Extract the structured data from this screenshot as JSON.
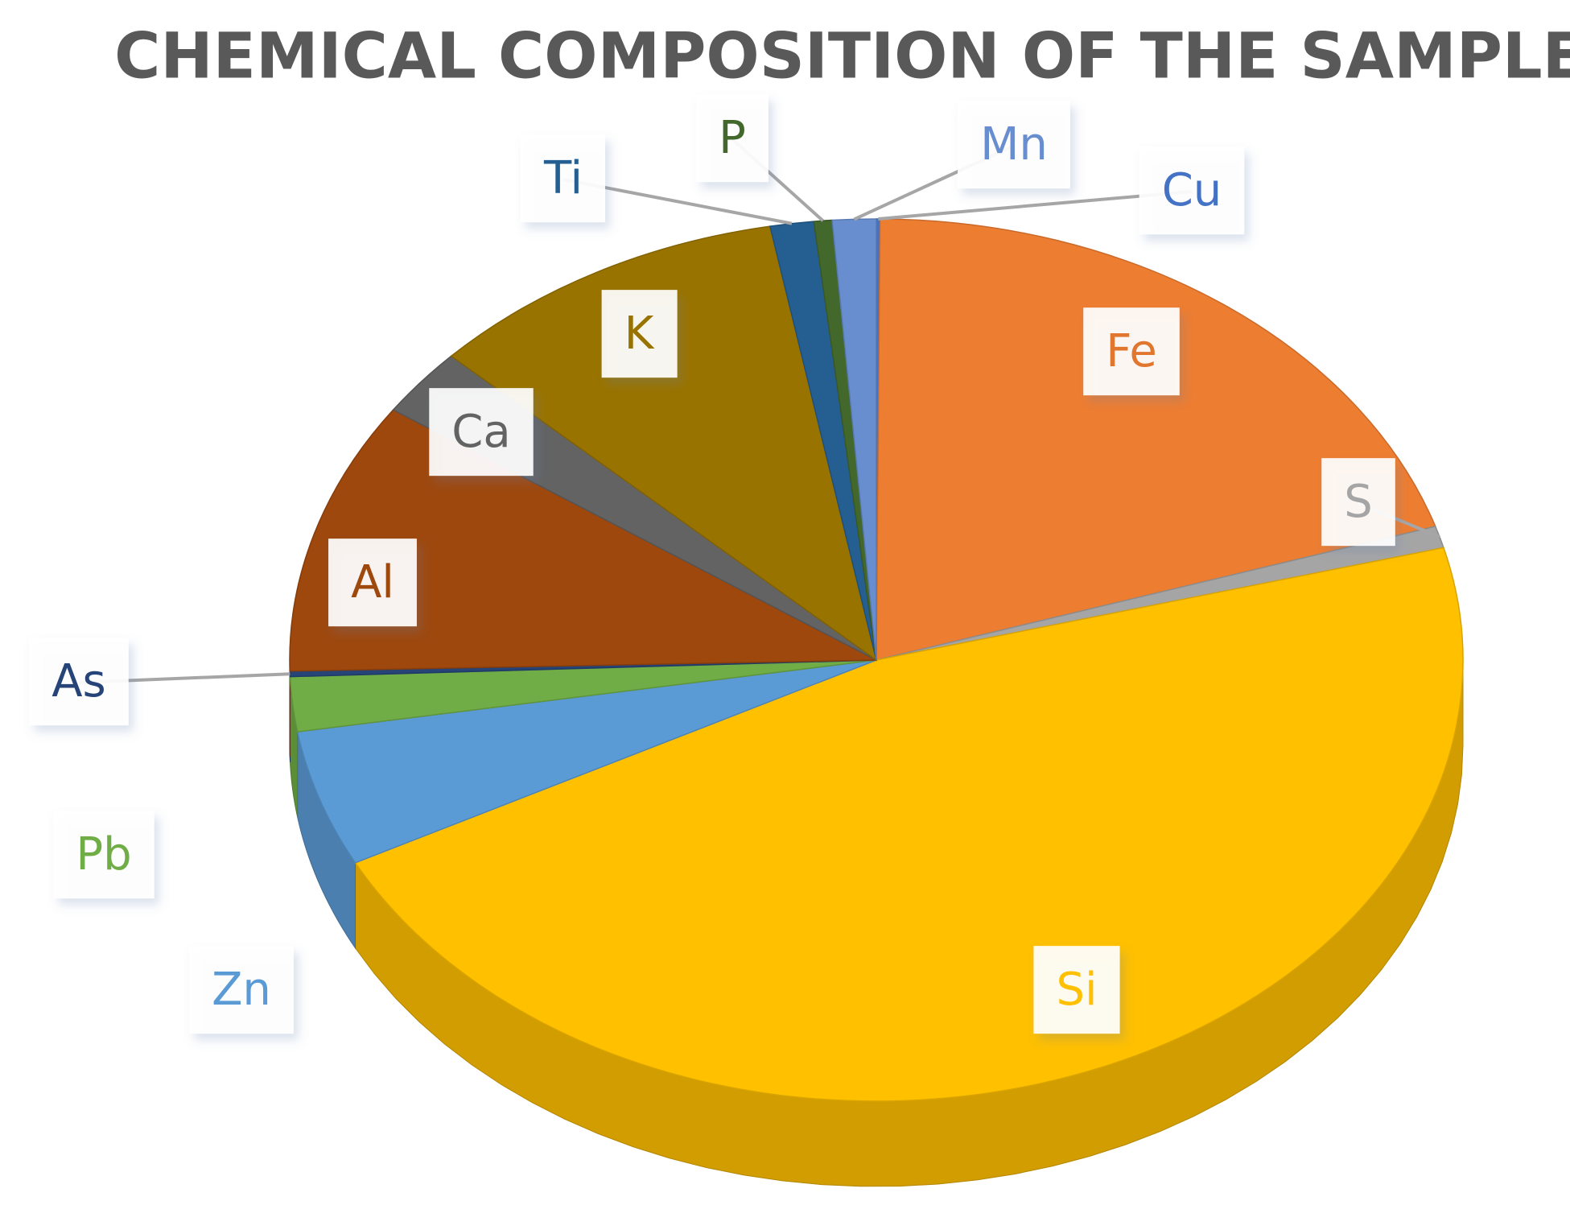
{
  "chart_data": {
    "type": "pie",
    "title": "CHEMICAL COMPOSITION OF THE SAMPLE",
    "categories": [
      "Cu",
      "Fe",
      "S",
      "Si",
      "Zn",
      "Pb",
      "As",
      "Al",
      "Ca",
      "K",
      "Ti",
      "P",
      "Mn"
    ],
    "values": [
      0.1,
      20,
      0.8,
      46.5,
      5,
      2,
      0.2,
      10,
      2.5,
      10,
      1.2,
      0.5,
      1.2
    ],
    "colors": [
      "#4472c4",
      "#ed7d31",
      "#a5a5a5",
      "#ffc000",
      "#5b9bd5",
      "#70ad47",
      "#264478",
      "#9e480e",
      "#636363",
      "#997300",
      "#255e91",
      "#43682b",
      "#698ed0"
    ]
  }
}
